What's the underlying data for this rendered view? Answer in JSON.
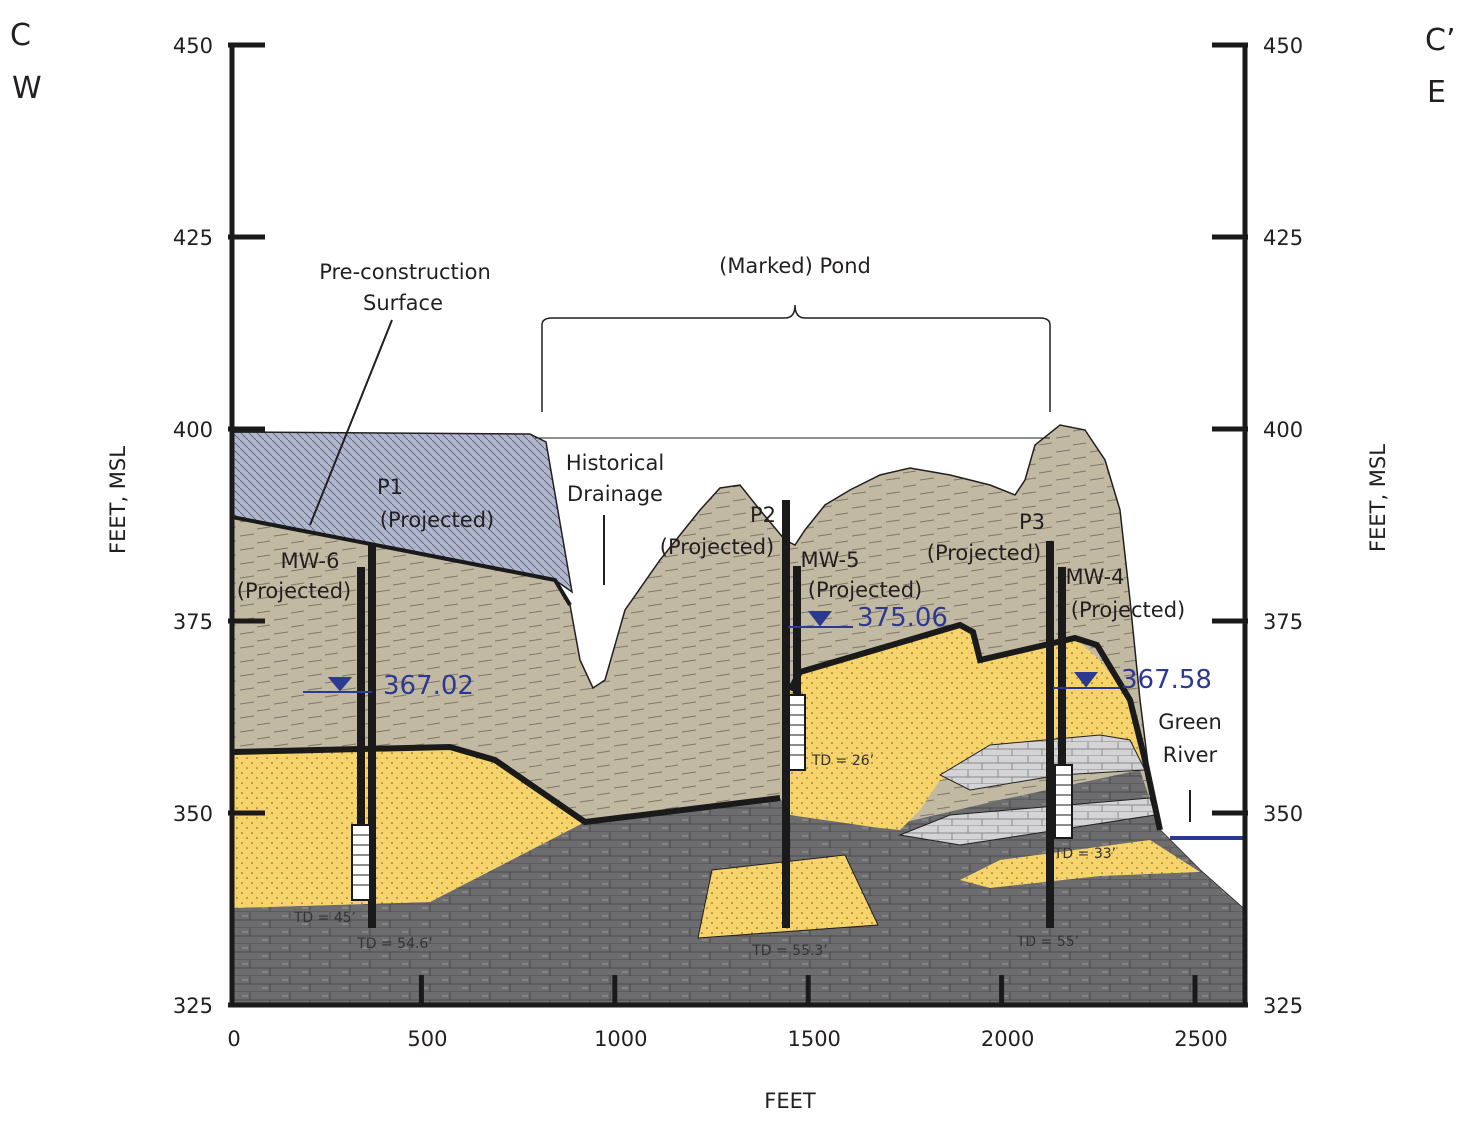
{
  "section": {
    "start": "C",
    "start_dir": "W",
    "end": "C’",
    "end_dir": "E"
  },
  "axes": {
    "y_left_title": "FEET, MSL",
    "y_right_title": "FEET, MSL",
    "x_title": "FEET",
    "y_ticks": [
      450,
      425,
      400,
      375,
      350,
      325
    ],
    "x_ticks": [
      0,
      500,
      1000,
      1500,
      2000,
      2500
    ]
  },
  "annotations": {
    "pond": "(Marked) Pond",
    "drainage": [
      "Historical",
      "Drainage"
    ],
    "surface": [
      "Pre-construction",
      "Surface"
    ],
    "river": [
      "Green",
      "River"
    ]
  },
  "wells": [
    {
      "name": "P1",
      "note": "(Projected)",
      "td": "TD = 54.6’"
    },
    {
      "name": "MW-6",
      "note": "(Projected)",
      "td": "TD = 45’"
    },
    {
      "name": "P2",
      "note": "(Projected)",
      "td": "TD = 55.3’"
    },
    {
      "name": "MW-5",
      "note": "(Projected)",
      "td": "TD = 26’"
    },
    {
      "name": "P3",
      "note": "(Projected)",
      "td": "TD = 55’"
    },
    {
      "name": "MW-4",
      "note": "(Projected)",
      "td": "TD = 33’"
    }
  ],
  "water_levels": [
    367.02,
    375.06,
    367.58
  ]
}
